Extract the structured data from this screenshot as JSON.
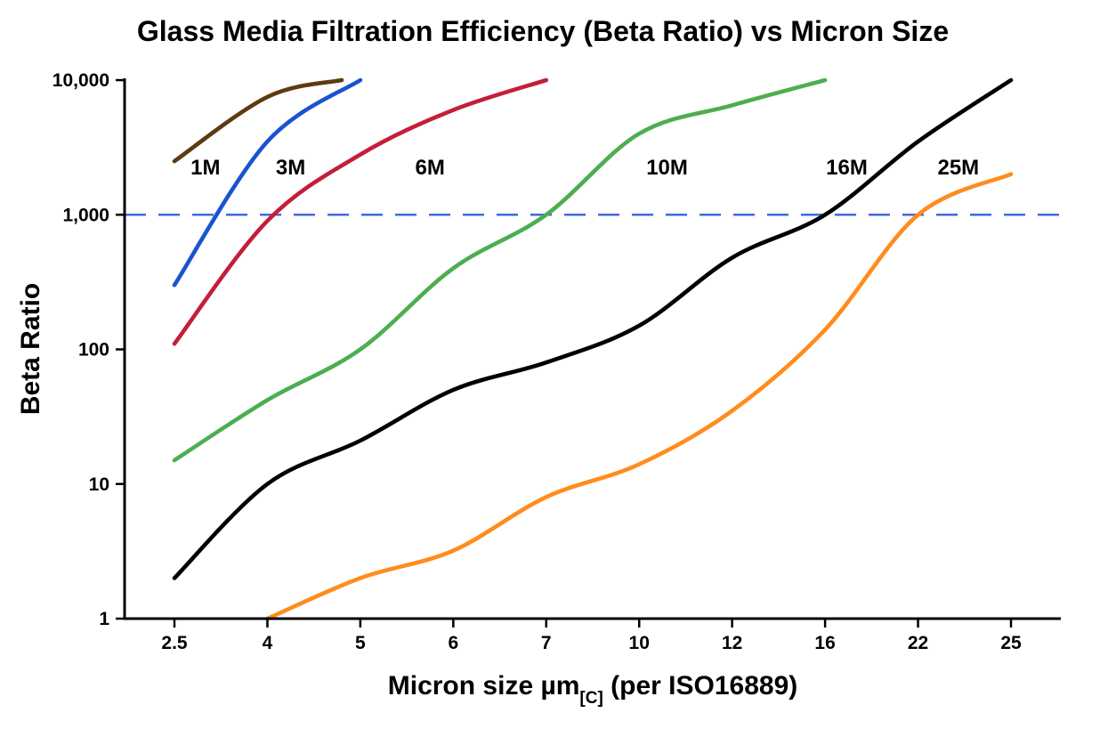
{
  "chart_data": {
    "type": "line",
    "title": "Glass Media Filtration Efficiency (Beta Ratio) vs Micron Size",
    "ylabel": "Beta Ratio",
    "xlabel": "Micron size µm[C] (per ISO16889)",
    "xlabel_parts": {
      "main": "Micron size µm",
      "sub": "[C]",
      "rest": " (per ISO16889)"
    },
    "x_scale": "category",
    "y_scale": "log",
    "grid": "off",
    "legend": "inline-labels",
    "ylim": [
      1,
      10000
    ],
    "categories": [
      2.5,
      4,
      5,
      6,
      7,
      10,
      12,
      16,
      22,
      25
    ],
    "x_tick_labels": [
      "2.5",
      "4",
      "5",
      "6",
      "7",
      "10",
      "12",
      "16",
      "22",
      "25"
    ],
    "y_ticks": [
      1,
      10,
      100,
      1000,
      10000
    ],
    "y_tick_labels": [
      "1",
      "10",
      "100",
      "1,000",
      "10,000"
    ],
    "reference_line": {
      "y": 1000,
      "color": "#4169e1",
      "style": "dashed"
    },
    "series": [
      {
        "name": "1M",
        "color": "#5e3a10",
        "label_x": 3.0,
        "points": [
          [
            2.5,
            2500
          ],
          [
            4,
            7500
          ],
          [
            4.8,
            10000
          ]
        ]
      },
      {
        "name": "3M",
        "color": "#1a53cf",
        "label_x": 4.25,
        "points": [
          [
            2.5,
            300
          ],
          [
            4,
            3500
          ],
          [
            5,
            10000
          ]
        ]
      },
      {
        "name": "6M",
        "color": "#c41e3a",
        "label_x": 5.75,
        "points": [
          [
            2.5,
            110
          ],
          [
            4,
            900
          ],
          [
            5,
            2800
          ],
          [
            6,
            6000
          ],
          [
            7,
            10000
          ]
        ]
      },
      {
        "name": "10M",
        "color": "#4cae50",
        "label_x": 10.6,
        "points": [
          [
            2.5,
            15
          ],
          [
            4,
            42
          ],
          [
            5,
            100
          ],
          [
            6,
            400
          ],
          [
            7,
            1000
          ],
          [
            10,
            4000
          ],
          [
            12,
            6500
          ],
          [
            16,
            10000
          ]
        ]
      },
      {
        "name": "16M",
        "color": "#000000",
        "label_x": 17.4,
        "points": [
          [
            2.5,
            2
          ],
          [
            4,
            10
          ],
          [
            5,
            21
          ],
          [
            6,
            50
          ],
          [
            7,
            80
          ],
          [
            10,
            150
          ],
          [
            12,
            480
          ],
          [
            16,
            1000
          ],
          [
            22,
            3500
          ],
          [
            25,
            10000
          ]
        ]
      },
      {
        "name": "25M",
        "color": "#ff8c1c",
        "label_x": 23.3,
        "points": [
          [
            4,
            1
          ],
          [
            5,
            2
          ],
          [
            6,
            3.2
          ],
          [
            7,
            8
          ],
          [
            10,
            14
          ],
          [
            12,
            35
          ],
          [
            16,
            140
          ],
          [
            22,
            1000
          ],
          [
            25,
            2000
          ]
        ]
      }
    ]
  }
}
